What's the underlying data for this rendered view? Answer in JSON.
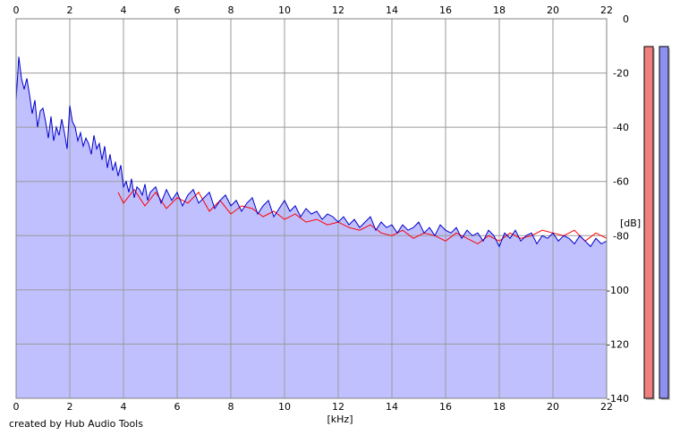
{
  "chart_data": {
    "type": "line",
    "xlabel": "[kHz]",
    "ylabel": "[dB]",
    "xlim": [
      0,
      22
    ],
    "ylim": [
      -140,
      0
    ],
    "x_ticks": [
      "0",
      "2",
      "4",
      "6",
      "8",
      "10",
      "12",
      "14",
      "16",
      "18",
      "20",
      "22"
    ],
    "y_ticks": [
      "0",
      "-20",
      "-40",
      "-60",
      "-80",
      "-100",
      "-120",
      "-140"
    ],
    "grid": true,
    "series": [
      {
        "color": "#0000cc",
        "fill": "#c0c0ff",
        "x": [
          0,
          0.1,
          0.2,
          0.3,
          0.4,
          0.5,
          0.6,
          0.7,
          0.8,
          0.9,
          1,
          1.1,
          1.2,
          1.3,
          1.4,
          1.5,
          1.6,
          1.7,
          1.8,
          1.9,
          2,
          2.1,
          2.2,
          2.3,
          2.4,
          2.5,
          2.6,
          2.7,
          2.8,
          2.9,
          3,
          3.1,
          3.2,
          3.3,
          3.4,
          3.5,
          3.6,
          3.7,
          3.8,
          3.9,
          4,
          4.1,
          4.2,
          4.3,
          4.4,
          4.5,
          4.6,
          4.7,
          4.8,
          4.9,
          5,
          5.2,
          5.4,
          5.6,
          5.8,
          6,
          6.2,
          6.4,
          6.6,
          6.8,
          7,
          7.2,
          7.4,
          7.6,
          7.8,
          8,
          8.2,
          8.4,
          8.6,
          8.8,
          9,
          9.2,
          9.4,
          9.6,
          9.8,
          10,
          10.2,
          10.4,
          10.6,
          10.8,
          11,
          11.2,
          11.4,
          11.6,
          11.8,
          12,
          12.2,
          12.4,
          12.6,
          12.8,
          13,
          13.2,
          13.4,
          13.6,
          13.8,
          14,
          14.2,
          14.4,
          14.6,
          14.8,
          15,
          15.2,
          15.4,
          15.6,
          15.8,
          16,
          16.2,
          16.4,
          16.6,
          16.8,
          17,
          17.2,
          17.4,
          17.6,
          17.8,
          18,
          18.2,
          18.4,
          18.6,
          18.8,
          19,
          19.2,
          19.4,
          19.6,
          19.8,
          20,
          20.2,
          20.4,
          20.6,
          20.8,
          21,
          21.2,
          21.4,
          21.6,
          21.8,
          22
        ],
        "y": [
          -30,
          -14,
          -22,
          -26,
          -22,
          -28,
          -35,
          -30,
          -40,
          -34,
          -33,
          -38,
          -44,
          -36,
          -45,
          -40,
          -43,
          -37,
          -42,
          -48,
          -32,
          -38,
          -40,
          -45,
          -42,
          -47,
          -44,
          -46,
          -50,
          -43,
          -48,
          -46,
          -52,
          -47,
          -55,
          -50,
          -56,
          -53,
          -58,
          -54,
          -62,
          -60,
          -64,
          -59,
          -66,
          -62,
          -63,
          -65,
          -61,
          -67,
          -64,
          -62,
          -68,
          -63,
          -67,
          -64,
          -69,
          -65,
          -63,
          -68,
          -66,
          -64,
          -70,
          -67,
          -65,
          -69,
          -67,
          -71,
          -68,
          -66,
          -72,
          -69,
          -67,
          -73,
          -70,
          -67,
          -71,
          -69,
          -73,
          -70,
          -72,
          -71,
          -74,
          -72,
          -73,
          -75,
          -73,
          -76,
          -74,
          -77,
          -75,
          -73,
          -78,
          -75,
          -77,
          -76,
          -79,
          -76,
          -78,
          -77,
          -75,
          -79,
          -77,
          -80,
          -76,
          -78,
          -79,
          -77,
          -81,
          -78,
          -80,
          -79,
          -82,
          -78,
          -80,
          -84,
          -79,
          -81,
          -78,
          -82,
          -80,
          -79,
          -83,
          -80,
          -81,
          -79,
          -82,
          -80,
          -81,
          -83,
          -80,
          -82,
          -84,
          -81,
          -83,
          -82
        ]
      },
      {
        "color": "#ff0000",
        "x": [
          3.8,
          4,
          4.4,
          4.8,
          5.2,
          5.6,
          6,
          6.4,
          6.8,
          7.2,
          7.6,
          8,
          8.4,
          8.8,
          9.2,
          9.6,
          10,
          10.4,
          10.8,
          11.2,
          11.6,
          12,
          12.4,
          12.8,
          13.2,
          13.6,
          14,
          14.4,
          14.8,
          15.2,
          15.6,
          16,
          16.4,
          16.8,
          17.2,
          17.6,
          18,
          18.4,
          18.8,
          19.2,
          19.6,
          20,
          20.4,
          20.8,
          21.2,
          21.6,
          22
        ],
        "y": [
          -64,
          -68,
          -63,
          -69,
          -64,
          -70,
          -66,
          -68,
          -64,
          -71,
          -67,
          -72,
          -69,
          -70,
          -73,
          -71,
          -74,
          -72,
          -75,
          -74,
          -76,
          -75,
          -77,
          -78,
          -76,
          -79,
          -80,
          -78,
          -81,
          -79,
          -80,
          -82,
          -79,
          -81,
          -83,
          -80,
          -82,
          -79,
          -81,
          -80,
          -78,
          -79,
          -80,
          -78,
          -82,
          -79,
          -81
        ]
      }
    ],
    "level_meters": [
      {
        "color": "#f08080",
        "value_db": -140
      },
      {
        "color": "#9090f0",
        "value_db": -140
      }
    ]
  },
  "footer": {
    "credit": "created by Hub Audio Tools"
  }
}
